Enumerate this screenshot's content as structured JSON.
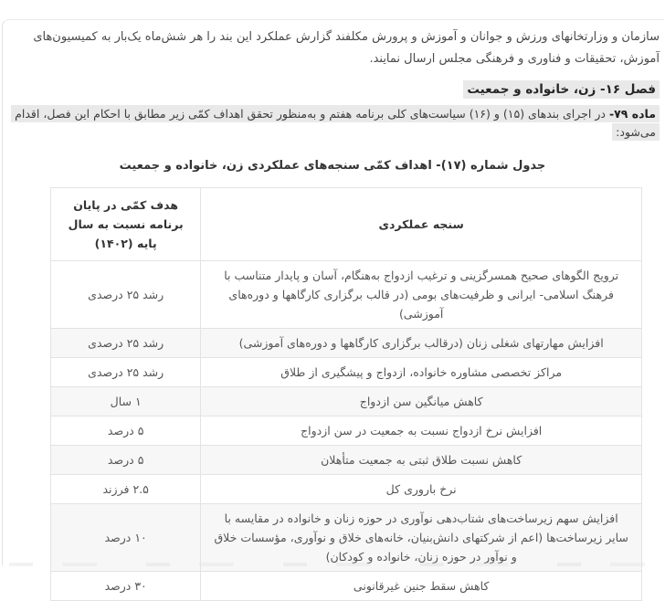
{
  "document": {
    "intro_paragraph": "سازمان و وزارتخانهای ورزش و جوانان و آموزش و پرورش مکلفند گزارش عملکرد این بند را هر شش‌ماه یک‌بار به کمیسیون‌های آموزش، تحقیقات و فناوری و فرهنگی مجلس ارسال نمایند.",
    "chapter_heading": "فصل ۱۶- زن، خانواده و جمعیت",
    "article_number": "ماده ۷۹-",
    "article_text": " در اجرای بندهای (۱۵) و (۱۶) سیاست‌های کلی برنامه هفتم و به‌منظور تحقق اهداف کمّی زیر مطابق با احکام این فصل، اقدام می‌شود:",
    "table_caption": "جدول شماره (۱۷)- اهداف کمّی سنجه‌های عملکردی زن، خانواده و جمعیت"
  },
  "table": {
    "headers": {
      "measure": "سنجه عملکردی",
      "target": "هدف کمّی در پایان برنامه نسبت به سال پایه (۱۴۰۲)"
    },
    "rows": [
      {
        "measure": "ترویج الگوهای صحیح همسرگزینی و ترغیب ازدواج به‌هنگام، آسان و پایدار متناسب با فرهنگ اسلامی- ایرانی و ظرفیت‌های بومی (در قالب برگزاری کارگاهها و دوره‌های آموزشی)",
        "target": "رشد ۲۵ درصدی"
      },
      {
        "measure": "افزایش مهارتهای شغلی زنان (درقالب برگزاری کارگاهها و دوره‌های آموزشی)",
        "target": "رشد ۲۵ درصدی"
      },
      {
        "measure": "مراکز تخصصی مشاوره خانواده، ازدواج و پیشگیری از طلاق",
        "target": "رشد ۲۵ درصدی"
      },
      {
        "measure": "کاهش میانگین سن ازدواج",
        "target": "۱ سال"
      },
      {
        "measure": "افزایش نرخ ازدواج نسبت به جمعیت در سن ازدواج",
        "target": "۵ درصد"
      },
      {
        "measure": "کاهش نسبت طلاق ثبتی به جمعیت متأهلان",
        "target": "۵ درصد"
      },
      {
        "measure": "نرخ باروری کل",
        "target": "۲.۵ فرزند"
      },
      {
        "measure": "افزایش سهم زیرساخت‌های شتاب‌دهی نوآوری در حوزه زنان و خانواده در مقایسه با سایر زیرساخت‌ها (اعم از شرکتهای دانش‌بنیان، خانه‌های خلاق و نوآوری، مؤسسات خلاق و نوآور در حوزه زنان، خانواده و کودکان)",
        "target": "۱۰ درصد"
      },
      {
        "measure": "کاهش سقط جنین غیرقانونی",
        "target": "۳۰ درصد"
      }
    ]
  },
  "colors": {
    "highlight_bg": "#e9e9e9",
    "table_border": "#e3e3e3",
    "stripe_row_bg": "#f7f7f7",
    "heading_text": "#262626",
    "body_text": "#4a4a4a",
    "table_text": "#555555"
  }
}
